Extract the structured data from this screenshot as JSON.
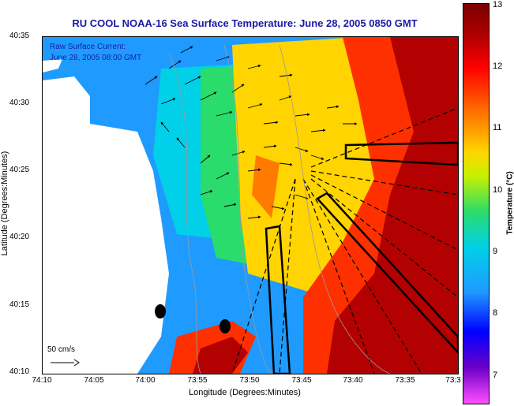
{
  "title": "RU COOL  NOAA-16  Sea Surface Temperature:  June 28, 2005 0850 GMT",
  "legend": {
    "line1": "Raw Surface Current:",
    "line2": "June 28, 2005 08:00 GMT"
  },
  "scale": {
    "label": "50 cm/s"
  },
  "axes": {
    "y_labels": [
      "40:35",
      "40:30",
      "40:25",
      "40:20",
      "40:15",
      "40:10"
    ],
    "x_labels": [
      "74:10",
      "74:05",
      "74:00",
      "73:55",
      "73:50",
      "73:45",
      "73:40",
      "73:35",
      "73:3"
    ],
    "x_title": "Longitude (Degrees:Minutes)",
    "y_title": "Latitude (Degrees:Minutes)"
  },
  "colorbar": {
    "title": "Temperature (°C)",
    "labels": [
      "13",
      "12",
      "11",
      "10",
      "9",
      "8",
      "7"
    ]
  },
  "colors": {
    "land": "#ffffff",
    "title": "#1a1aa6",
    "warm": "#b30000",
    "cool": "#1f9bff"
  },
  "markers": [
    "station-marker-1",
    "station-marker-2"
  ]
}
